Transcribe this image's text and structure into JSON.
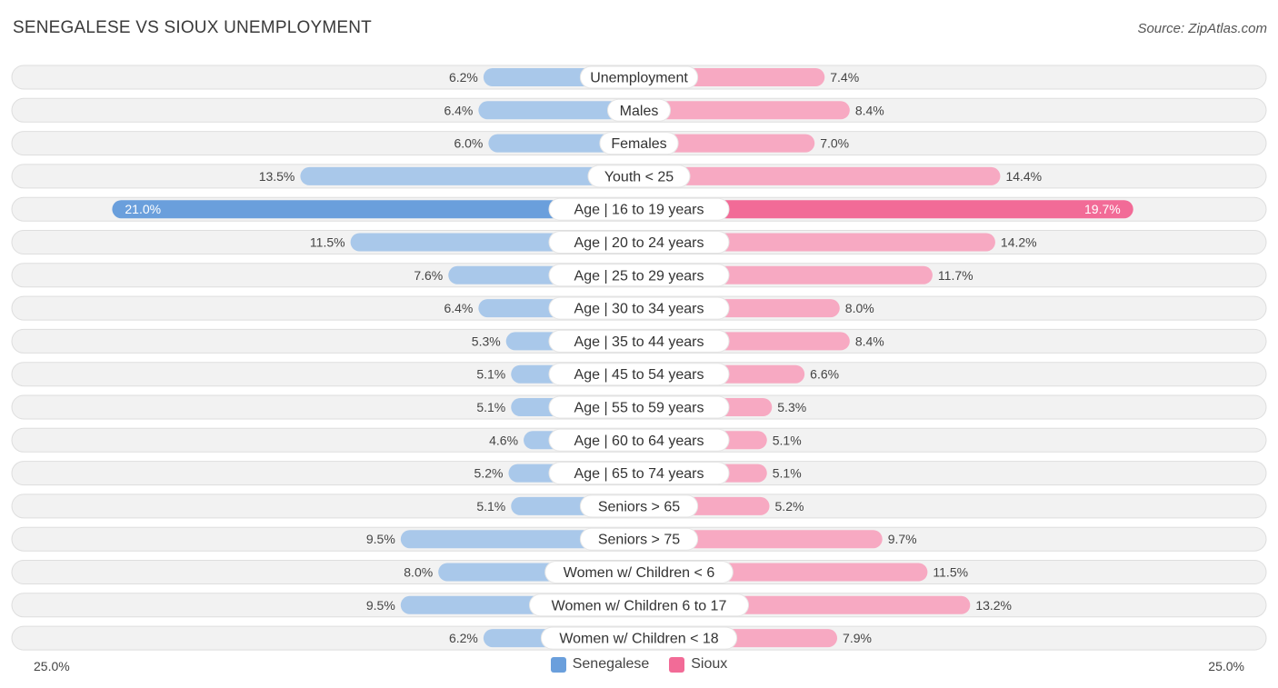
{
  "title": "SENEGALESE VS SIOUX UNEMPLOYMENT",
  "source": "Source: ZipAtlas.com",
  "colors": {
    "left_light": "#a9c8ea",
    "left_strong": "#6a9fdc",
    "right_light": "#f7a9c2",
    "right_strong": "#f26b97"
  },
  "legend": {
    "left_label": "Senegalese",
    "right_label": "Sioux"
  },
  "chart_data": {
    "type": "bar",
    "orientation": "diverging-horizontal",
    "title": "SENEGALESE VS SIOUX UNEMPLOYMENT",
    "axis_max": 25.0,
    "axis_left_label": "25.0%",
    "axis_right_label": "25.0%",
    "categories": [
      "Unemployment",
      "Males",
      "Females",
      "Youth < 25",
      "Age | 16 to 19 years",
      "Age | 20 to 24 years",
      "Age | 25 to 29 years",
      "Age | 30 to 34 years",
      "Age | 35 to 44 years",
      "Age | 45 to 54 years",
      "Age | 55 to 59 years",
      "Age | 60 to 64 years",
      "Age | 65 to 74 years",
      "Seniors > 65",
      "Seniors > 75",
      "Women w/ Children < 6",
      "Women w/ Children 6 to 17",
      "Women w/ Children < 18"
    ],
    "series": [
      {
        "name": "Senegalese",
        "values": [
          6.2,
          6.4,
          6.0,
          13.5,
          21.0,
          11.5,
          7.6,
          6.4,
          5.3,
          5.1,
          5.1,
          4.6,
          5.2,
          5.1,
          9.5,
          8.0,
          9.5,
          6.2
        ],
        "labels": [
          "6.2%",
          "6.4%",
          "6.0%",
          "13.5%",
          "21.0%",
          "11.5%",
          "7.6%",
          "6.4%",
          "5.3%",
          "5.1%",
          "5.1%",
          "4.6%",
          "5.2%",
          "5.1%",
          "9.5%",
          "8.0%",
          "9.5%",
          "6.2%"
        ]
      },
      {
        "name": "Sioux",
        "values": [
          7.4,
          8.4,
          7.0,
          14.4,
          19.7,
          14.2,
          11.7,
          8.0,
          8.4,
          6.6,
          5.3,
          5.1,
          5.1,
          5.2,
          9.7,
          11.5,
          13.2,
          7.9
        ],
        "labels": [
          "7.4%",
          "8.4%",
          "7.0%",
          "14.4%",
          "19.7%",
          "14.2%",
          "11.7%",
          "8.0%",
          "8.4%",
          "6.6%",
          "5.3%",
          "5.1%",
          "5.1%",
          "5.2%",
          "9.7%",
          "11.5%",
          "13.2%",
          "7.9%"
        ]
      }
    ]
  }
}
